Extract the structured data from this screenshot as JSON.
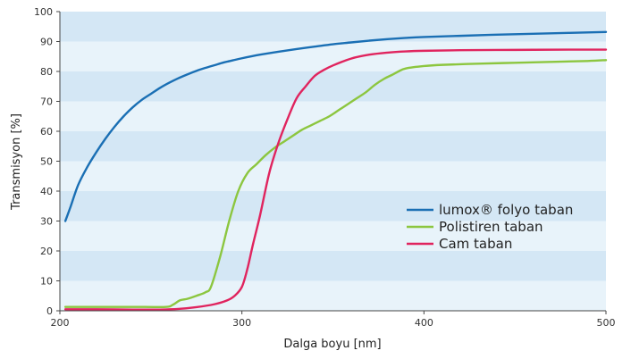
{
  "chart_data": {
    "type": "line",
    "xlabel": "Dalga boyu [nm]",
    "ylabel": "Transmisyon [%]",
    "xlim": [
      200,
      500
    ],
    "ylim": [
      0,
      100
    ],
    "xticks": [
      200,
      300,
      400,
      500
    ],
    "yticks": [
      0,
      10,
      20,
      30,
      40,
      50,
      60,
      70,
      80,
      90,
      100
    ],
    "grid": "horizontal alternating bands",
    "band_colors": [
      "#e8f3fa",
      "#d4e7f5"
    ],
    "legend_position": "center-right",
    "series": [
      {
        "name": "lumox® folyo taban",
        "color": "#1a6fb4",
        "x": [
          203,
          206,
          210,
          215,
          220,
          225,
          230,
          235,
          240,
          245,
          250,
          255,
          260,
          265,
          270,
          275,
          280,
          285,
          290,
          295,
          300,
          310,
          320,
          330,
          340,
          350,
          360,
          370,
          380,
          390,
          400,
          420,
          440,
          460,
          480,
          500
        ],
        "y": [
          30,
          35,
          42,
          48,
          53,
          57.5,
          61.5,
          65,
          68,
          70.5,
          72.5,
          74.5,
          76.2,
          77.7,
          79,
          80.2,
          81.2,
          82.1,
          83,
          83.7,
          84.4,
          85.6,
          86.6,
          87.5,
          88.3,
          89.1,
          89.7,
          90.3,
          90.8,
          91.2,
          91.5,
          91.9,
          92.3,
          92.6,
          92.9,
          93.2
        ]
      },
      {
        "name": "Polistiren taban",
        "color": "#8cc63f",
        "x": [
          203,
          220,
          240,
          258,
          262,
          266,
          270,
          275,
          280,
          283,
          288,
          293,
          298,
          303,
          308,
          313,
          318,
          323,
          328,
          333,
          338,
          343,
          348,
          353,
          358,
          363,
          368,
          373,
          378,
          383,
          386,
          390,
          400,
          410,
          430,
          450,
          470,
          490,
          500
        ],
        "y": [
          1.3,
          1.3,
          1.3,
          1.3,
          2,
          3.5,
          4,
          5,
          6.2,
          8,
          18,
          30,
          40,
          46,
          49,
          52,
          54.5,
          56.5,
          58.5,
          60.5,
          62,
          63.5,
          65,
          67,
          69,
          71,
          73,
          75.5,
          77.5,
          79,
          80,
          81,
          81.8,
          82.2,
          82.6,
          82.9,
          83.2,
          83.5,
          83.8
        ]
      },
      {
        "name": "Cam taban",
        "color": "#e0245e",
        "x": [
          203,
          220,
          240,
          255,
          265,
          275,
          285,
          292,
          296,
          300,
          303,
          306,
          310,
          315,
          320,
          325,
          330,
          335,
          340,
          345,
          350,
          360,
          370,
          380,
          390,
          400,
          420,
          450,
          480,
          500
        ],
        "y": [
          0.5,
          0.5,
          0.4,
          0.4,
          0.6,
          1.2,
          2.2,
          3.5,
          5,
          8,
          14,
          22,
          32,
          46,
          56,
          64,
          71,
          75,
          78.5,
          80.5,
          82,
          84.3,
          85.6,
          86.3,
          86.7,
          86.9,
          87.1,
          87.2,
          87.3,
          87.3
        ]
      }
    ]
  }
}
